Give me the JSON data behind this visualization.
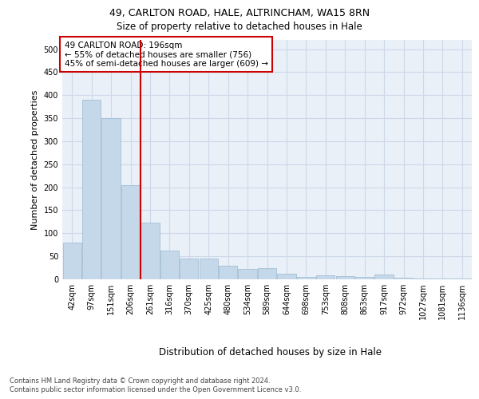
{
  "title_line1": "49, CARLTON ROAD, HALE, ALTRINCHAM, WA15 8RN",
  "title_line2": "Size of property relative to detached houses in Hale",
  "xlabel": "Distribution of detached houses by size in Hale",
  "ylabel": "Number of detached properties",
  "footer_line1": "Contains HM Land Registry data © Crown copyright and database right 2024.",
  "footer_line2": "Contains public sector information licensed under the Open Government Licence v3.0.",
  "annotation_line1": "49 CARLTON ROAD: 196sqm",
  "annotation_line2": "← 55% of detached houses are smaller (756)",
  "annotation_line3": "45% of semi-detached houses are larger (609) →",
  "bar_color": "#c5d8ea",
  "bar_edge_color": "#9ab8d0",
  "grid_color": "#cdd8e8",
  "background_color": "#eaf0f8",
  "vline_color": "#cc0000",
  "vline_x": 3.5,
  "categories": [
    "42sqm",
    "97sqm",
    "151sqm",
    "206sqm",
    "261sqm",
    "316sqm",
    "370sqm",
    "425sqm",
    "480sqm",
    "534sqm",
    "589sqm",
    "644sqm",
    "698sqm",
    "753sqm",
    "808sqm",
    "863sqm",
    "917sqm",
    "972sqm",
    "1027sqm",
    "1081sqm",
    "1136sqm"
  ],
  "values": [
    80,
    390,
    350,
    205,
    123,
    63,
    45,
    45,
    30,
    22,
    24,
    13,
    6,
    9,
    7,
    6,
    10,
    3,
    2,
    2,
    2
  ],
  "ylim": [
    0,
    520
  ],
  "yticks": [
    0,
    50,
    100,
    150,
    200,
    250,
    300,
    350,
    400,
    450,
    500
  ],
  "title1_fontsize": 9,
  "title2_fontsize": 8.5,
  "ylabel_fontsize": 8,
  "xlabel_fontsize": 8.5,
  "tick_fontsize": 7,
  "footer_fontsize": 6,
  "ann_fontsize": 7.5
}
